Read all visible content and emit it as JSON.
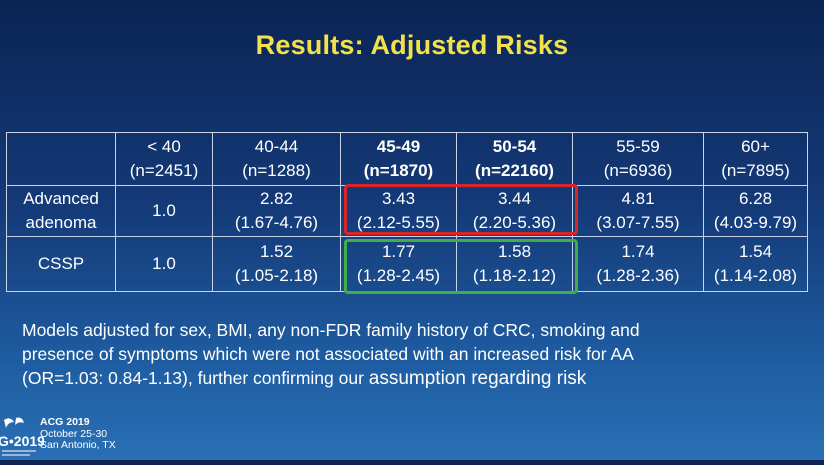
{
  "slide": {
    "title": "Results: Adjusted Risks",
    "columns": [
      {
        "label": "",
        "n": ""
      },
      {
        "label": "< 40",
        "n": "(n=2451)"
      },
      {
        "label": "40-44",
        "n": "(n=1288)"
      },
      {
        "label": "45-49",
        "n": "(n=1870)"
      },
      {
        "label": "50-54",
        "n": "(n=22160)"
      },
      {
        "label": "55-59",
        "n": "(n=6936)"
      },
      {
        "label": "60+",
        "n": "(n=7895)"
      }
    ],
    "rows": [
      {
        "label_line1": "Advanced",
        "label_line2": "adenoma",
        "cells": [
          {
            "value": "1.0",
            "ci": ""
          },
          {
            "value": "2.82",
            "ci": "(1.67-4.76)"
          },
          {
            "value": "3.43",
            "ci": "(2.12-5.55)"
          },
          {
            "value": "3.44",
            "ci": "(2.20-5.36)"
          },
          {
            "value": "4.81",
            "ci": "(3.07-7.55)"
          },
          {
            "value": "6.28",
            "ci": "(4.03-9.79)"
          }
        ]
      },
      {
        "label_line1": "CSSP",
        "label_line2": "",
        "cells": [
          {
            "value": "1.0",
            "ci": ""
          },
          {
            "value": "1.52",
            "ci": "(1.05-2.18)"
          },
          {
            "value": "1.77",
            "ci": "(1.28-2.45)"
          },
          {
            "value": "1.58",
            "ci": "(1.18-2.12)"
          },
          {
            "value": "1.74",
            "ci": "(1.28-2.36)"
          },
          {
            "value": "1.54",
            "ci": "(1.14-2.08)"
          }
        ]
      }
    ],
    "note_line1": "Models adjusted for sex, BMI, any non-FDR family history of CRC, smoking and",
    "note_line2": "presence of symptoms which were not associated with an increased risk for AA",
    "note_line3a": "(OR=1.03: 0.84-1.13), further confirming our ",
    "note_line3b": "assumption regarding risk",
    "footer": {
      "logo_text": "G•2019",
      "name": "ACG 2019",
      "dates": "October 25-30",
      "location": "San Antonio, TX"
    },
    "colors": {
      "title": "#f2e14a",
      "highlight_red": "#d7262a",
      "highlight_green": "#3fae49"
    }
  }
}
